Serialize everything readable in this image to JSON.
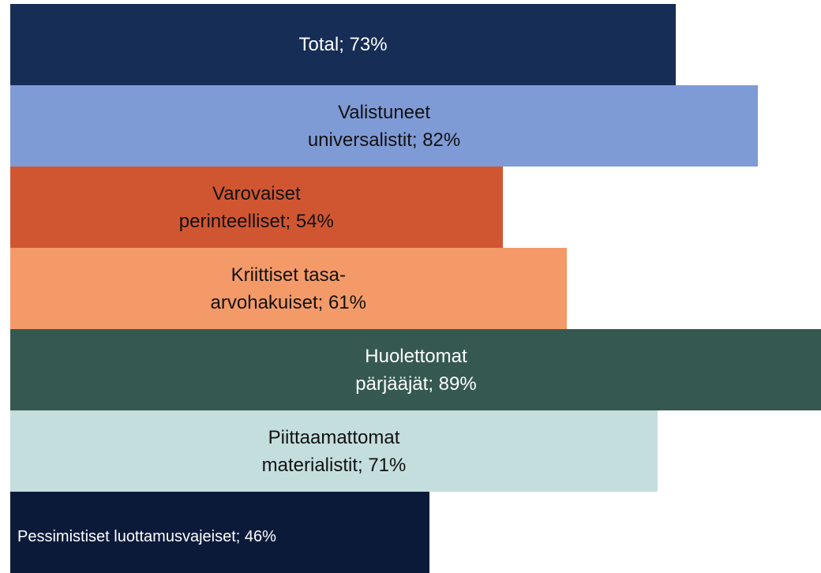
{
  "chart_data": {
    "type": "bar",
    "orientation": "horizontal",
    "values": [
      73,
      82,
      54,
      61,
      89,
      71,
      46
    ],
    "value_labels": [
      "Total; 73%",
      "Valistuneet universalistit; 82%",
      "Varovaiset perinteelliset; 54%",
      "Kriittiset tasa-arvohakuiset; 61%",
      "Huolettomat pärjääjät; 89%",
      "Piittaamattomat materialistit; 71%",
      "Pessimistiset luottamusvajeiset; 46%"
    ],
    "colors": [
      "#162d55",
      "#7f9bd6",
      "#d05632",
      "#f49a68",
      "#355950",
      "#c3dedd",
      "#0c1a3a"
    ]
  }
}
